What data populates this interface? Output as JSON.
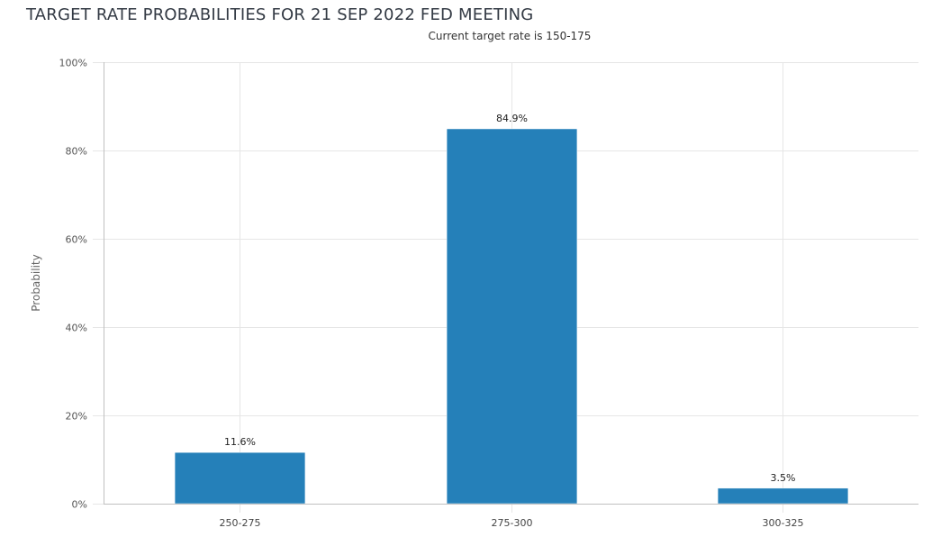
{
  "page": {
    "title": "TARGET RATE PROBABILITIES FOR 21 SEP 2022 FED MEETING"
  },
  "chart_data": {
    "type": "bar",
    "title": "TARGET RATE PROBABILITIES FOR 21 SEP 2022 FED MEETING",
    "subtitle": "Current target rate is 150-175",
    "xlabel": "",
    "ylabel": "Probability",
    "categories": [
      "250-275",
      "275-300",
      "300-325"
    ],
    "values": [
      11.6,
      84.9,
      3.5
    ],
    "data_labels": [
      "11.6%",
      "84.9%",
      "3.5%"
    ],
    "ylim": [
      0,
      100
    ],
    "yticks": [
      0,
      20,
      40,
      60,
      80,
      100
    ],
    "ytick_labels": [
      "0%",
      "20%",
      "40%",
      "60%",
      "80%",
      "100%"
    ],
    "grid": true,
    "legend": "none",
    "bar_color": "#2580b9"
  }
}
